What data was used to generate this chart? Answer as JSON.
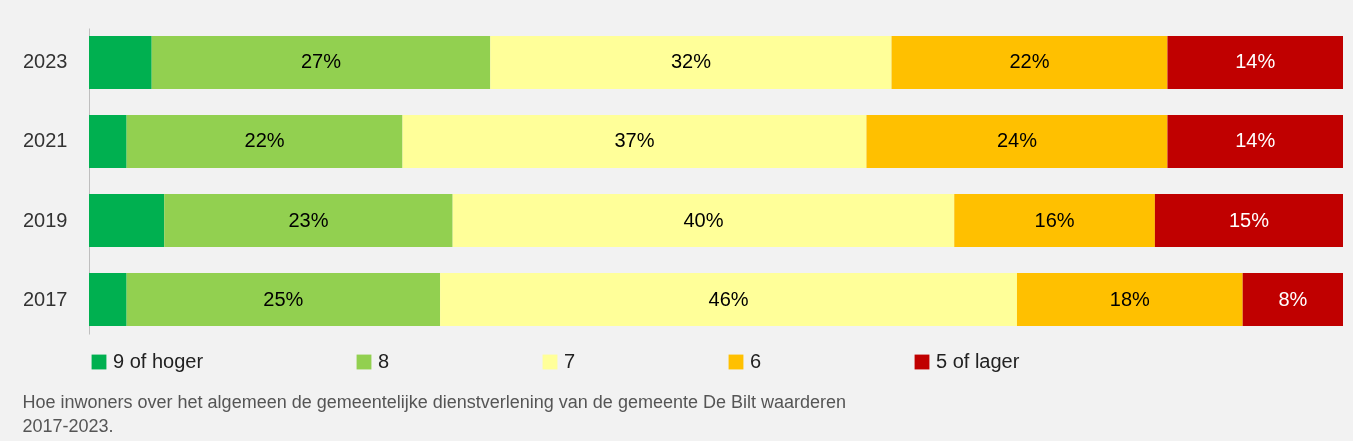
{
  "chart_data": {
    "type": "bar",
    "orientation": "horizontal",
    "stacked": true,
    "categories": [
      "2023",
      "2021",
      "2019",
      "2017"
    ],
    "series": [
      {
        "name": "9 of hoger",
        "color": "#00b050",
        "values": [
          5,
          3,
          6,
          3
        ],
        "value_labels": [
          null,
          null,
          null,
          null
        ]
      },
      {
        "name": "8",
        "color": "#92d050",
        "values": [
          27,
          22,
          23,
          25
        ],
        "value_labels": [
          "27%",
          "22%",
          "23%",
          "25%"
        ]
      },
      {
        "name": "7",
        "color": "#ffff99",
        "values": [
          32,
          37,
          40,
          46
        ],
        "value_labels": [
          "32%",
          "37%",
          "40%",
          "46%"
        ]
      },
      {
        "name": "6",
        "color": "#ffc000",
        "values": [
          22,
          24,
          16,
          18
        ],
        "value_labels": [
          "22%",
          "24%",
          "16%",
          "18%"
        ]
      },
      {
        "name": "5 of lager",
        "color": "#c00000",
        "values": [
          14,
          14,
          15,
          8
        ],
        "value_labels": [
          "14%",
          "14%",
          "15%",
          "8%"
        ]
      }
    ],
    "legend": "bottom",
    "grid": false,
    "annotations": [
      "Hoe inwoners over het algemeen de gemeentelijke dienstverlening van de gemeente De Bilt waarderen 2017-2023."
    ]
  }
}
